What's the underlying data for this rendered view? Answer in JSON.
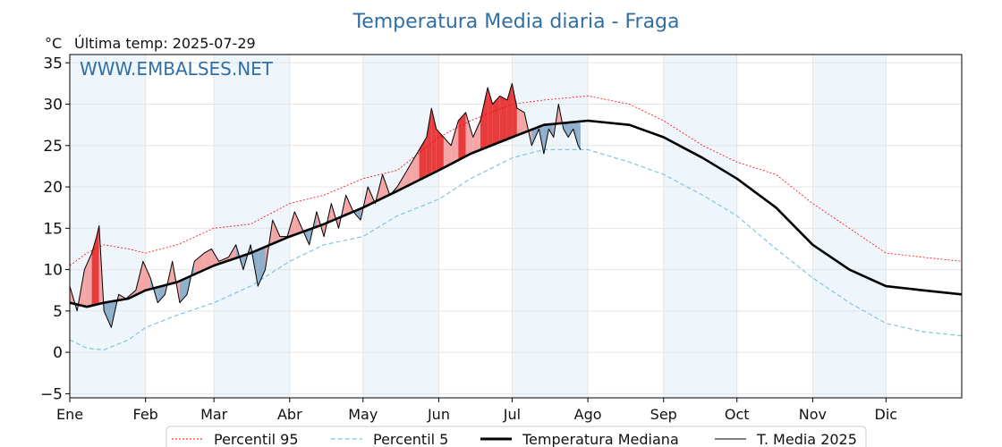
{
  "chart_data": {
    "type": "line",
    "title": "Temperatura Media diaria - Fraga",
    "unit_label": "°C",
    "last_temp_label": "Última temp: 2025-07-29",
    "watermark": "WWW.EMBALSES.NET",
    "xlabel": "",
    "ylabel": "",
    "ylim": [
      -5.5,
      36
    ],
    "yticks": [
      -5,
      0,
      5,
      10,
      15,
      20,
      25,
      30,
      35
    ],
    "xlim": [
      1,
      366
    ],
    "month_ticks": [
      {
        "label": "Ene",
        "day": 1
      },
      {
        "label": "Feb",
        "day": 32
      },
      {
        "label": "Mar",
        "day": 60
      },
      {
        "label": "Abr",
        "day": 91
      },
      {
        "label": "May",
        "day": 121
      },
      {
        "label": "Jun",
        "day": 152
      },
      {
        "label": "Jul",
        "day": 182
      },
      {
        "label": "Ago",
        "day": 213
      },
      {
        "label": "Sep",
        "day": 244
      },
      {
        "label": "Oct",
        "day": 274
      },
      {
        "label": "Nov",
        "day": 305
      },
      {
        "label": "Dic",
        "day": 335
      }
    ],
    "grid": true,
    "legend_position": "bottom",
    "colors": {
      "p95": "#ff0000",
      "p5": "#87c3da",
      "median": "#000000",
      "current": "#000000",
      "above_fill": "#f4a6a6",
      "above_fill_strong": "#e83c3c",
      "below_fill": "#8fb0cc",
      "below_fill_strong": "#2d6aa3",
      "band": "#eef5fb",
      "title": "#2f6fa5"
    },
    "series": [
      {
        "key": "p95",
        "name": "Percentil 95",
        "points": [
          [
            1,
            10.5
          ],
          [
            8,
            12
          ],
          [
            15,
            13
          ],
          [
            25,
            12.5
          ],
          [
            32,
            12
          ],
          [
            45,
            13
          ],
          [
            60,
            15
          ],
          [
            75,
            15.5
          ],
          [
            91,
            18
          ],
          [
            105,
            19
          ],
          [
            121,
            21
          ],
          [
            135,
            22
          ],
          [
            152,
            26
          ],
          [
            165,
            28
          ],
          [
            182,
            30
          ],
          [
            195,
            30.5
          ],
          [
            213,
            31
          ],
          [
            230,
            30
          ],
          [
            244,
            28
          ],
          [
            260,
            25
          ],
          [
            274,
            23
          ],
          [
            290,
            21.5
          ],
          [
            305,
            18
          ],
          [
            320,
            15
          ],
          [
            335,
            12
          ],
          [
            350,
            11.5
          ],
          [
            366,
            11
          ]
        ]
      },
      {
        "key": "p5",
        "name": "Percentil 5",
        "points": [
          [
            1,
            1.5
          ],
          [
            8,
            0.5
          ],
          [
            15,
            0.3
          ],
          [
            25,
            1.5
          ],
          [
            32,
            3
          ],
          [
            45,
            4.5
          ],
          [
            60,
            6
          ],
          [
            75,
            8
          ],
          [
            91,
            11
          ],
          [
            105,
            13
          ],
          [
            121,
            14
          ],
          [
            135,
            16.5
          ],
          [
            152,
            18.5
          ],
          [
            165,
            21
          ],
          [
            182,
            23.5
          ],
          [
            195,
            24.5
          ],
          [
            213,
            24.5
          ],
          [
            230,
            23
          ],
          [
            244,
            21.5
          ],
          [
            260,
            19
          ],
          [
            274,
            16.5
          ],
          [
            290,
            12.5
          ],
          [
            305,
            9
          ],
          [
            320,
            6
          ],
          [
            335,
            3.5
          ],
          [
            350,
            2.5
          ],
          [
            366,
            2
          ]
        ]
      },
      {
        "key": "median",
        "name": "Temperatura Mediana",
        "points": [
          [
            1,
            6
          ],
          [
            8,
            5.5
          ],
          [
            15,
            6
          ],
          [
            25,
            6.5
          ],
          [
            32,
            7.5
          ],
          [
            45,
            8.5
          ],
          [
            60,
            10.5
          ],
          [
            75,
            12
          ],
          [
            91,
            14
          ],
          [
            105,
            15.5
          ],
          [
            121,
            17.5
          ],
          [
            135,
            19.5
          ],
          [
            152,
            22
          ],
          [
            165,
            24
          ],
          [
            182,
            26
          ],
          [
            195,
            27.5
          ],
          [
            213,
            28
          ],
          [
            230,
            27.5
          ],
          [
            244,
            26
          ],
          [
            260,
            23.5
          ],
          [
            274,
            21
          ],
          [
            290,
            17.5
          ],
          [
            305,
            13
          ],
          [
            320,
            10
          ],
          [
            335,
            8
          ],
          [
            350,
            7.5
          ],
          [
            366,
            7
          ]
        ]
      },
      {
        "key": "current",
        "name": "T. Media 2025",
        "points": [
          [
            1,
            8
          ],
          [
            4,
            5
          ],
          [
            7,
            10
          ],
          [
            10,
            12
          ],
          [
            12,
            14
          ],
          [
            13,
            15.3
          ],
          [
            15,
            5
          ],
          [
            18,
            3
          ],
          [
            21,
            7
          ],
          [
            24,
            6.5
          ],
          [
            28,
            7.5
          ],
          [
            31,
            11
          ],
          [
            34,
            9
          ],
          [
            37,
            6
          ],
          [
            40,
            7
          ],
          [
            43,
            11
          ],
          [
            46,
            6
          ],
          [
            49,
            7
          ],
          [
            52,
            11
          ],
          [
            56,
            12
          ],
          [
            59,
            12.5
          ],
          [
            62,
            11
          ],
          [
            66,
            11.5
          ],
          [
            69,
            13
          ],
          [
            72,
            10
          ],
          [
            75,
            13
          ],
          [
            78,
            8
          ],
          [
            81,
            10
          ],
          [
            84,
            16
          ],
          [
            87,
            14
          ],
          [
            90,
            14
          ],
          [
            93,
            17
          ],
          [
            96,
            15
          ],
          [
            99,
            13
          ],
          [
            102,
            17
          ],
          [
            105,
            14
          ],
          [
            108,
            18
          ],
          [
            111,
            15
          ],
          [
            114,
            19
          ],
          [
            117,
            17
          ],
          [
            120,
            16
          ],
          [
            123,
            20
          ],
          [
            126,
            18
          ],
          [
            129,
            21.5
          ],
          [
            132,
            19
          ],
          [
            135,
            20
          ],
          [
            138,
            21.5
          ],
          [
            141,
            23
          ],
          [
            144,
            24.5
          ],
          [
            147,
            26
          ],
          [
            149,
            29.5
          ],
          [
            151,
            27
          ],
          [
            154,
            26
          ],
          [
            157,
            25
          ],
          [
            160,
            28
          ],
          [
            163,
            29
          ],
          [
            166,
            26
          ],
          [
            169,
            28
          ],
          [
            172,
            32
          ],
          [
            174,
            30
          ],
          [
            177,
            31
          ],
          [
            180,
            30.5
          ],
          [
            182,
            32.5
          ],
          [
            184,
            29.5
          ],
          [
            187,
            29
          ],
          [
            190,
            25
          ],
          [
            193,
            27
          ],
          [
            195,
            24
          ],
          [
            197,
            27
          ],
          [
            199,
            26
          ],
          [
            201,
            30
          ],
          [
            203,
            27
          ],
          [
            205,
            26
          ],
          [
            207,
            27
          ],
          [
            209,
            25
          ],
          [
            210,
            24.5
          ]
        ]
      }
    ]
  }
}
